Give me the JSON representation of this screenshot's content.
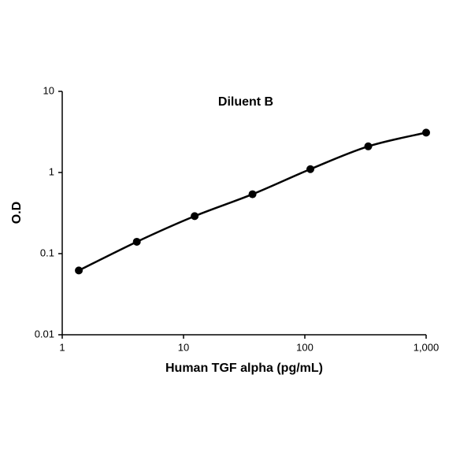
{
  "chart_data": {
    "type": "line",
    "title": "Diluent B",
    "x_label": "Human TGF alpha (pg/mL)",
    "y_label": "O.D",
    "series": [
      {
        "name": "Diluent B",
        "color": "#000000",
        "x": [
          1.37,
          4.12,
          12.35,
          37.04,
          111.1,
          333.3,
          1000
        ],
        "values": [
          0.062,
          0.14,
          0.29,
          0.54,
          1.1,
          2.1,
          3.1
        ]
      }
    ],
    "x_log": true,
    "y_log": true,
    "xlim": [
      1,
      1000
    ],
    "xticks": [
      1,
      10,
      100,
      {
        "value": 1000,
        "label": "1,000"
      }
    ],
    "ylim": [
      0.01,
      10
    ],
    "yticks": [
      0.01,
      0.1,
      1,
      10
    ],
    "grid": false,
    "legend": false
  }
}
